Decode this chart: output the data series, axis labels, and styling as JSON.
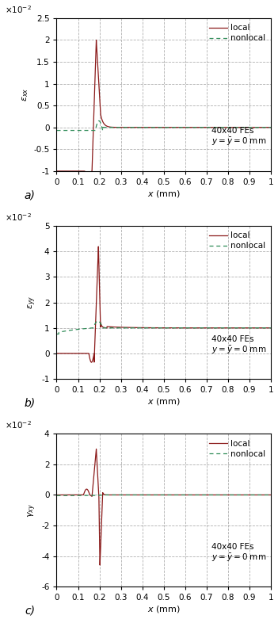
{
  "panel_a": {
    "ylabel": "$\\varepsilon_{xx}$",
    "ylabel_top": "$\\times10^{-2}$",
    "ylim": [
      -1.0,
      2.5
    ],
    "yticks": [
      -1.0,
      -0.5,
      0.0,
      0.5,
      1.0,
      1.5,
      2.0,
      2.5
    ],
    "label": "a)"
  },
  "panel_b": {
    "ylabel": "$\\varepsilon_{yy}$",
    "ylabel_top": "$\\times10^{-2}$",
    "ylim": [
      -1.0,
      5.0
    ],
    "yticks": [
      -1.0,
      0.0,
      1.0,
      2.0,
      3.0,
      4.0,
      5.0
    ],
    "label": "b)"
  },
  "panel_c": {
    "ylabel": "$\\gamma_{xy}$",
    "ylabel_top": "$\\times10^{-2}$",
    "ylim": [
      -6.0,
      4.0
    ],
    "yticks": [
      -6.0,
      -4.0,
      -2.0,
      0.0,
      2.0,
      4.0
    ],
    "label": "c)"
  },
  "xlim": [
    0,
    1.0
  ],
  "xticks": [
    0,
    0.1,
    0.2,
    0.3,
    0.4,
    0.5,
    0.6,
    0.7,
    0.8,
    0.9,
    1.0
  ],
  "xlabel": "$x$ (mm)",
  "annotation": "40x40 FEs\n$y=\\bar{y}=0$ mm",
  "local_color": "#8B1A1A",
  "nonlocal_color": "#2E8B57",
  "grid_color": "#B0B0B0",
  "background_color": "#FFFFFF"
}
